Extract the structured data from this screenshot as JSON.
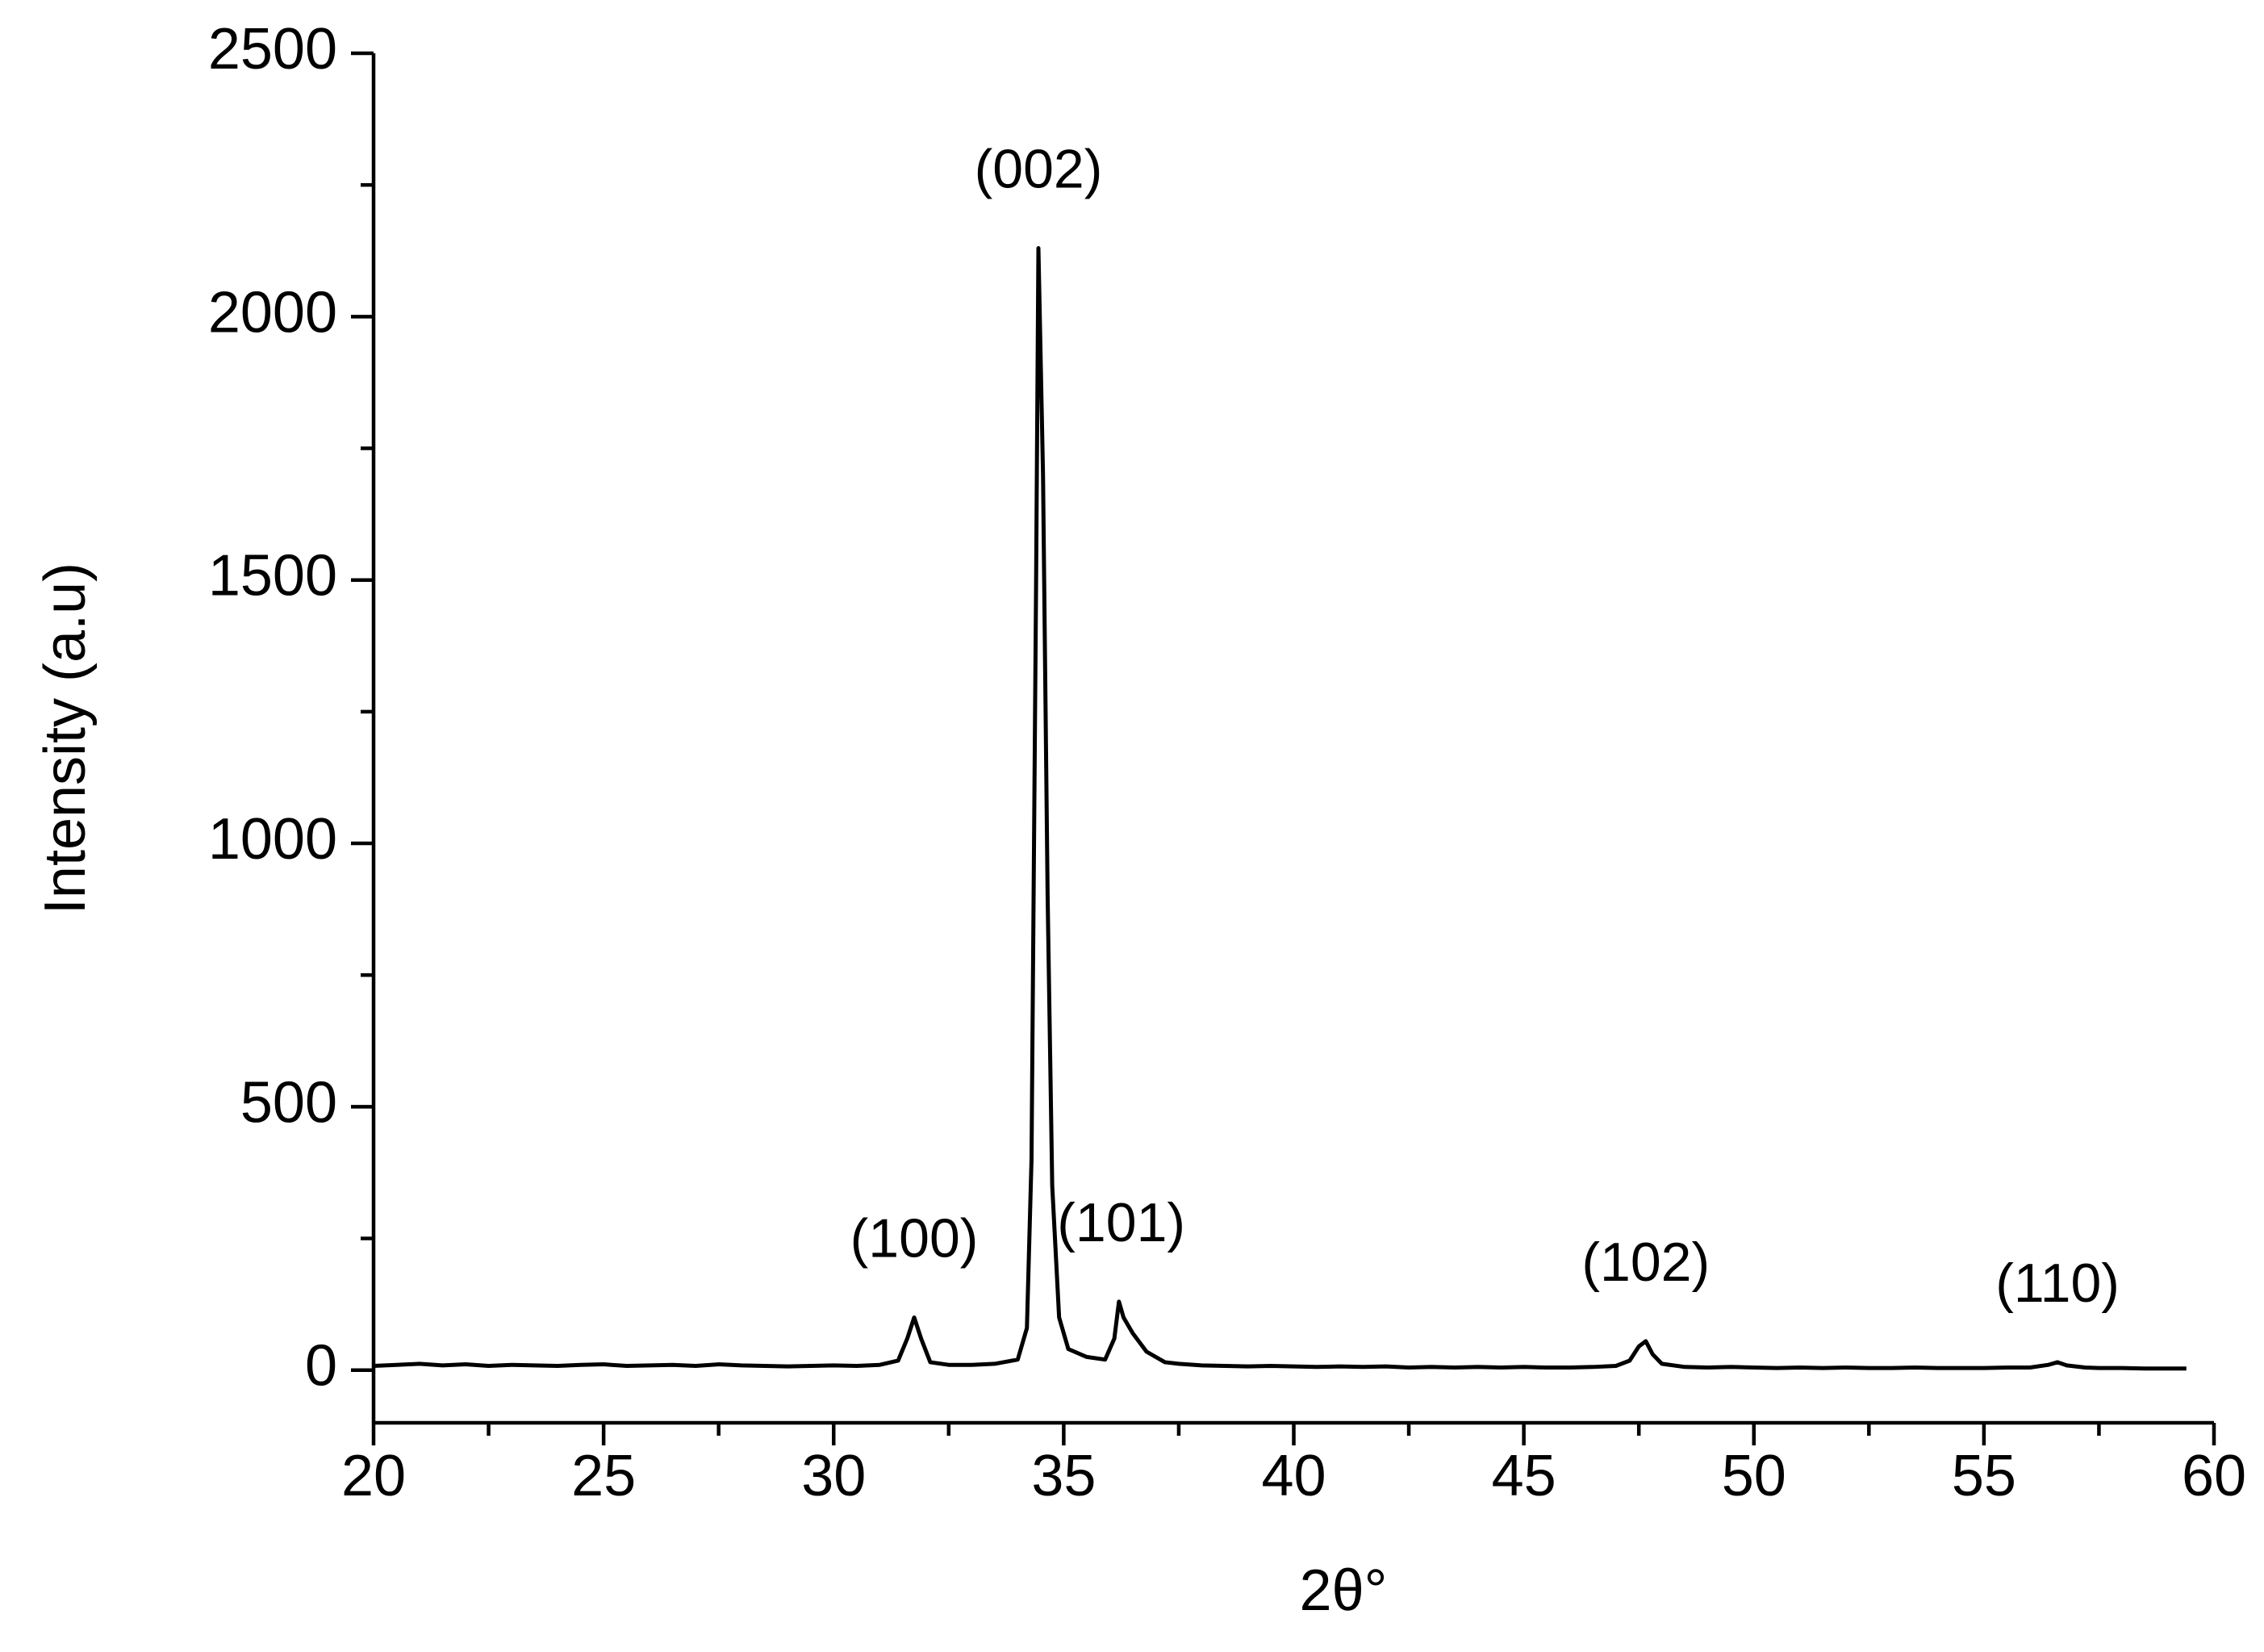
{
  "chart_data": {
    "type": "line",
    "xlabel": "2θ°",
    "ylabel": "Intensity (a.u)",
    "x": [
      20,
      20.5,
      21,
      21.5,
      22,
      22.5,
      23,
      23.5,
      24,
      24.5,
      25,
      25.5,
      26,
      26.5,
      27,
      27.5,
      28,
      28.5,
      29,
      29.5,
      30,
      30.5,
      31,
      31.4,
      31.6,
      31.75,
      31.9,
      32.1,
      32.5,
      33,
      33.5,
      34,
      34.2,
      34.3,
      34.4,
      34.45,
      34.55,
      34.65,
      34.75,
      34.9,
      35.1,
      35.5,
      35.9,
      36.1,
      36.2,
      36.3,
      36.5,
      36.8,
      37.2,
      37.5,
      38,
      38.5,
      39,
      39.5,
      40,
      40.5,
      41,
      41.5,
      42,
      42.5,
      43,
      43.5,
      44,
      44.5,
      45,
      45.5,
      46,
      46.5,
      47,
      47.3,
      47.5,
      47.65,
      47.8,
      48,
      48.5,
      49,
      49.5,
      50,
      50.5,
      51,
      51.5,
      52,
      52.5,
      53,
      53.5,
      54,
      54.5,
      55,
      55.5,
      56,
      56.4,
      56.6,
      56.8,
      57.2,
      57.5,
      58,
      58.5,
      59,
      59.4
    ],
    "series": [
      {
        "color": "#000000",
        "values": [
          8,
          10,
          12,
          9,
          11,
          8,
          10,
          9,
          8,
          10,
          11,
          8,
          9,
          10,
          8,
          11,
          9,
          8,
          7,
          8,
          9,
          8,
          10,
          18,
          60,
          100,
          60,
          15,
          10,
          10,
          12,
          20,
          80,
          400,
          1500,
          2130,
          1700,
          900,
          350,
          100,
          40,
          25,
          20,
          60,
          130,
          100,
          70,
          35,
          15,
          12,
          9,
          8,
          7,
          8,
          7,
          6,
          7,
          6,
          7,
          5,
          6,
          5,
          6,
          5,
          6,
          5,
          5,
          6,
          8,
          18,
          45,
          55,
          30,
          12,
          6,
          5,
          6,
          5,
          4,
          5,
          4,
          5,
          4,
          4,
          5,
          4,
          4,
          4,
          5,
          5,
          10,
          15,
          9,
          5,
          4,
          4,
          3,
          3,
          3
        ]
      }
    ],
    "annotations": [
      {
        "text": "(100)",
        "x": 31.75,
        "y": 100
      },
      {
        "text": "(002)",
        "x": 34.45,
        "y": 2130
      },
      {
        "text": "(101)",
        "x": 36.25,
        "y": 130
      },
      {
        "text": "(102)",
        "x": 47.65,
        "y": 55
      },
      {
        "text": "(110)",
        "x": 56.6,
        "y": 15
      }
    ],
    "xlim": [
      20,
      60
    ],
    "xticks": [
      20,
      25,
      30,
      35,
      40,
      45,
      50,
      55,
      60
    ],
    "ylim": [
      -100,
      2500
    ],
    "yticks": [
      0,
      500,
      1000,
      1500,
      2000,
      2500
    ],
    "grid": false
  }
}
